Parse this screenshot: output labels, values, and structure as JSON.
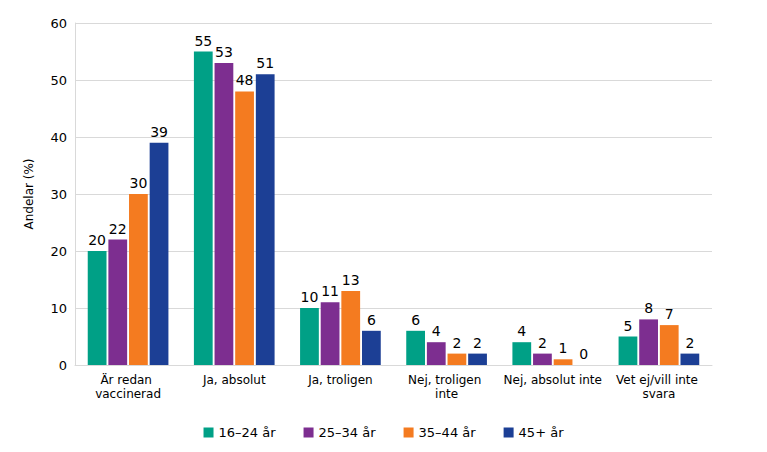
{
  "chart_data": {
    "type": "bar",
    "y_label": "Andelar (%)",
    "categories": [
      "Är redan vaccinerad",
      "Ja, absolut",
      "Ja, troligen",
      "Nej, troligen inte",
      "Nej, absolut inte",
      "Vet ej/vill inte svara"
    ],
    "series": [
      {
        "name": "16–24 år",
        "color": "#00a086",
        "values": [
          20,
          55,
          10,
          6,
          4,
          5
        ]
      },
      {
        "name": "25–34 år",
        "color": "#7d2e90",
        "values": [
          22,
          53,
          11,
          4,
          2,
          8
        ]
      },
      {
        "name": "35–44 år",
        "color": "#f47b20",
        "values": [
          30,
          48,
          13,
          2,
          1,
          7
        ]
      },
      {
        "name": "45+ år",
        "color": "#1c3f95",
        "values": [
          39,
          51,
          6,
          2,
          0,
          2
        ]
      }
    ],
    "ylim": [
      0,
      60
    ],
    "yticks": [
      0,
      10,
      20,
      30,
      40,
      50,
      60
    ],
    "grid": true,
    "legend": "bottom",
    "data_labels": true
  }
}
